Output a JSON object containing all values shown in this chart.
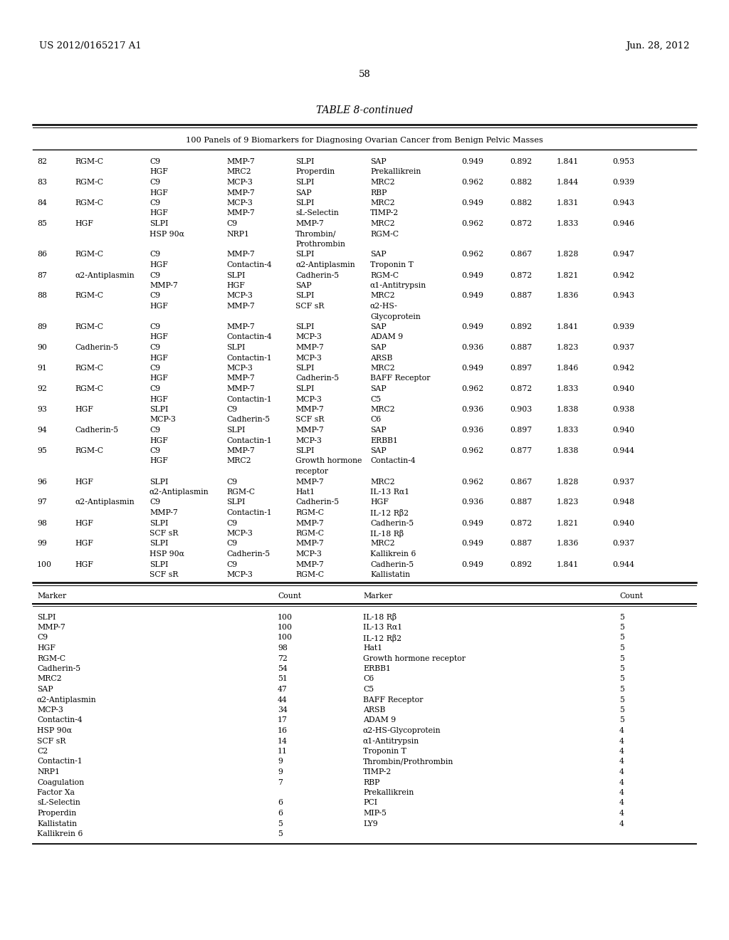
{
  "header_left": "US 2012/0165217 A1",
  "header_right": "Jun. 28, 2012",
  "page_number": "58",
  "table_title": "TABLE 8-continued",
  "table_subtitle": "100 Panels of 9 Biomarkers for Diagnosing Ovarian Cancer from Benign Pelvic Masses",
  "main_table_rows": [
    {
      "num": "82",
      "col1": "RGM-C",
      "col2": "C9",
      "col3": "MMP-7",
      "col4": "SLPI",
      "col5": "SAP",
      "v1": "0.949",
      "v2": "0.892",
      "v3": "1.841",
      "v4": "0.953"
    },
    {
      "num": "",
      "col1": "",
      "col2": "HGF",
      "col3": "MRC2",
      "col4": "Properdin",
      "col5": "Prekallikrein",
      "v1": "",
      "v2": "",
      "v3": "",
      "v4": ""
    },
    {
      "num": "83",
      "col1": "RGM-C",
      "col2": "C9",
      "col3": "MCP-3",
      "col4": "SLPI",
      "col5": "MRC2",
      "v1": "0.962",
      "v2": "0.882",
      "v3": "1.844",
      "v4": "0.939"
    },
    {
      "num": "",
      "col1": "",
      "col2": "HGF",
      "col3": "MMP-7",
      "col4": "SAP",
      "col5": "RBP",
      "v1": "",
      "v2": "",
      "v3": "",
      "v4": ""
    },
    {
      "num": "84",
      "col1": "RGM-C",
      "col2": "C9",
      "col3": "MCP-3",
      "col4": "SLPI",
      "col5": "MRC2",
      "v1": "0.949",
      "v2": "0.882",
      "v3": "1.831",
      "v4": "0.943"
    },
    {
      "num": "",
      "col1": "",
      "col2": "HGF",
      "col3": "MMP-7",
      "col4": "sL-Selectin",
      "col5": "TIMP-2",
      "v1": "",
      "v2": "",
      "v3": "",
      "v4": ""
    },
    {
      "num": "85",
      "col1": "HGF",
      "col2": "SLPI",
      "col3": "C9",
      "col4": "MMP-7",
      "col5": "MRC2",
      "v1": "0.962",
      "v2": "0.872",
      "v3": "1.833",
      "v4": "0.946"
    },
    {
      "num": "",
      "col1": "",
      "col2": "HSP 90α",
      "col3": "NRP1",
      "col4": "Thrombin/",
      "col5": "RGM-C",
      "v1": "",
      "v2": "",
      "v3": "",
      "v4": ""
    },
    {
      "num": "",
      "col1": "",
      "col2": "",
      "col3": "",
      "col4": "Prothrombin",
      "col5": "",
      "v1": "",
      "v2": "",
      "v3": "",
      "v4": ""
    },
    {
      "num": "86",
      "col1": "RGM-C",
      "col2": "C9",
      "col3": "MMP-7",
      "col4": "SLPI",
      "col5": "SAP",
      "v1": "0.962",
      "v2": "0.867",
      "v3": "1.828",
      "v4": "0.947"
    },
    {
      "num": "",
      "col1": "",
      "col2": "HGF",
      "col3": "Contactin-4",
      "col4": "α2-Antiplasmin",
      "col5": "Troponin T",
      "v1": "",
      "v2": "",
      "v3": "",
      "v4": ""
    },
    {
      "num": "87",
      "col1": "α2-Antiplasmin",
      "col2": "C9",
      "col3": "SLPI",
      "col4": "Cadherin-5",
      "col5": "RGM-C",
      "v1": "0.949",
      "v2": "0.872",
      "v3": "1.821",
      "v4": "0.942"
    },
    {
      "num": "",
      "col1": "",
      "col2": "MMP-7",
      "col3": "HGF",
      "col4": "SAP",
      "col5": "α1-Antitrypsin",
      "v1": "",
      "v2": "",
      "v3": "",
      "v4": ""
    },
    {
      "num": "88",
      "col1": "RGM-C",
      "col2": "C9",
      "col3": "MCP-3",
      "col4": "SLPI",
      "col5": "MRC2",
      "v1": "0.949",
      "v2": "0.887",
      "v3": "1.836",
      "v4": "0.943"
    },
    {
      "num": "",
      "col1": "",
      "col2": "HGF",
      "col3": "MMP-7",
      "col4": "SCF sR",
      "col5": "α2-HS-",
      "v1": "",
      "v2": "",
      "v3": "",
      "v4": ""
    },
    {
      "num": "",
      "col1": "",
      "col2": "",
      "col3": "",
      "col4": "",
      "col5": "Glycoprotein",
      "v1": "",
      "v2": "",
      "v3": "",
      "v4": ""
    },
    {
      "num": "89",
      "col1": "RGM-C",
      "col2": "C9",
      "col3": "MMP-7",
      "col4": "SLPI",
      "col5": "SAP",
      "v1": "0.949",
      "v2": "0.892",
      "v3": "1.841",
      "v4": "0.939"
    },
    {
      "num": "",
      "col1": "",
      "col2": "HGF",
      "col3": "Contactin-4",
      "col4": "MCP-3",
      "col5": "ADAM 9",
      "v1": "",
      "v2": "",
      "v3": "",
      "v4": ""
    },
    {
      "num": "90",
      "col1": "Cadherin-5",
      "col2": "C9",
      "col3": "SLPI",
      "col4": "MMP-7",
      "col5": "SAP",
      "v1": "0.936",
      "v2": "0.887",
      "v3": "1.823",
      "v4": "0.937"
    },
    {
      "num": "",
      "col1": "",
      "col2": "HGF",
      "col3": "Contactin-1",
      "col4": "MCP-3",
      "col5": "ARSB",
      "v1": "",
      "v2": "",
      "v3": "",
      "v4": ""
    },
    {
      "num": "91",
      "col1": "RGM-C",
      "col2": "C9",
      "col3": "MCP-3",
      "col4": "SLPI",
      "col5": "MRC2",
      "v1": "0.949",
      "v2": "0.897",
      "v3": "1.846",
      "v4": "0.942"
    },
    {
      "num": "",
      "col1": "",
      "col2": "HGF",
      "col3": "MMP-7",
      "col4": "Cadherin-5",
      "col5": "BAFF Receptor",
      "v1": "",
      "v2": "",
      "v3": "",
      "v4": ""
    },
    {
      "num": "92",
      "col1": "RGM-C",
      "col2": "C9",
      "col3": "MMP-7",
      "col4": "SLPI",
      "col5": "SAP",
      "v1": "0.962",
      "v2": "0.872",
      "v3": "1.833",
      "v4": "0.940"
    },
    {
      "num": "",
      "col1": "",
      "col2": "HGF",
      "col3": "Contactin-1",
      "col4": "MCP-3",
      "col5": "C5",
      "v1": "",
      "v2": "",
      "v3": "",
      "v4": ""
    },
    {
      "num": "93",
      "col1": "HGF",
      "col2": "SLPI",
      "col3": "C9",
      "col4": "MMP-7",
      "col5": "MRC2",
      "v1": "0.936",
      "v2": "0.903",
      "v3": "1.838",
      "v4": "0.938"
    },
    {
      "num": "",
      "col1": "",
      "col2": "MCP-3",
      "col3": "Cadherin-5",
      "col4": "SCF sR",
      "col5": "C6",
      "v1": "",
      "v2": "",
      "v3": "",
      "v4": ""
    },
    {
      "num": "94",
      "col1": "Cadherin-5",
      "col2": "C9",
      "col3": "SLPI",
      "col4": "MMP-7",
      "col5": "SAP",
      "v1": "0.936",
      "v2": "0.897",
      "v3": "1.833",
      "v4": "0.940"
    },
    {
      "num": "",
      "col1": "",
      "col2": "HGF",
      "col3": "Contactin-1",
      "col4": "MCP-3",
      "col5": "ERBB1",
      "v1": "",
      "v2": "",
      "v3": "",
      "v4": ""
    },
    {
      "num": "95",
      "col1": "RGM-C",
      "col2": "C9",
      "col3": "MMP-7",
      "col4": "SLPI",
      "col5": "SAP",
      "v1": "0.962",
      "v2": "0.877",
      "v3": "1.838",
      "v4": "0.944"
    },
    {
      "num": "",
      "col1": "",
      "col2": "HGF",
      "col3": "MRC2",
      "col4": "Growth hormone",
      "col5": "Contactin-4",
      "v1": "",
      "v2": "",
      "v3": "",
      "v4": ""
    },
    {
      "num": "",
      "col1": "",
      "col2": "",
      "col3": "",
      "col4": "receptor",
      "col5": "",
      "v1": "",
      "v2": "",
      "v3": "",
      "v4": ""
    },
    {
      "num": "96",
      "col1": "HGF",
      "col2": "SLPI",
      "col3": "C9",
      "col4": "MMP-7",
      "col5": "MRC2",
      "v1": "0.962",
      "v2": "0.867",
      "v3": "1.828",
      "v4": "0.937"
    },
    {
      "num": "",
      "col1": "",
      "col2": "α2-Antiplasmin",
      "col3": "RGM-C",
      "col4": "Hat1",
      "col5": "IL-13 Rα1",
      "v1": "",
      "v2": "",
      "v3": "",
      "v4": ""
    },
    {
      "num": "97",
      "col1": "α2-Antiplasmin",
      "col2": "C9",
      "col3": "SLPI",
      "col4": "Cadherin-5",
      "col5": "HGF",
      "v1": "0.936",
      "v2": "0.887",
      "v3": "1.823",
      "v4": "0.948"
    },
    {
      "num": "",
      "col1": "",
      "col2": "MMP-7",
      "col3": "Contactin-1",
      "col4": "RGM-C",
      "col5": "IL-12 Rβ2",
      "v1": "",
      "v2": "",
      "v3": "",
      "v4": ""
    },
    {
      "num": "98",
      "col1": "HGF",
      "col2": "SLPI",
      "col3": "C9",
      "col4": "MMP-7",
      "col5": "Cadherin-5",
      "v1": "0.949",
      "v2": "0.872",
      "v3": "1.821",
      "v4": "0.940"
    },
    {
      "num": "",
      "col1": "",
      "col2": "SCF sR",
      "col3": "MCP-3",
      "col4": "RGM-C",
      "col5": "IL-18 Rβ",
      "v1": "",
      "v2": "",
      "v3": "",
      "v4": ""
    },
    {
      "num": "99",
      "col1": "HGF",
      "col2": "SLPI",
      "col3": "C9",
      "col4": "MMP-7",
      "col5": "MRC2",
      "v1": "0.949",
      "v2": "0.887",
      "v3": "1.836",
      "v4": "0.937"
    },
    {
      "num": "",
      "col1": "",
      "col2": "HSP 90α",
      "col3": "Cadherin-5",
      "col4": "MCP-3",
      "col5": "Kallikrein 6",
      "v1": "",
      "v2": "",
      "v3": "",
      "v4": ""
    },
    {
      "num": "100",
      "col1": "HGF",
      "col2": "SLPI",
      "col3": "C9",
      "col4": "MMP-7",
      "col5": "Cadherin-5",
      "v1": "0.949",
      "v2": "0.892",
      "v3": "1.841",
      "v4": "0.944"
    },
    {
      "num": "",
      "col1": "",
      "col2": "SCF sR",
      "col3": "MCP-3",
      "col4": "RGM-C",
      "col5": "Kallistatin",
      "v1": "",
      "v2": "",
      "v3": "",
      "v4": ""
    }
  ],
  "summary_left": [
    {
      "marker": "SLPI",
      "count": "100"
    },
    {
      "marker": "MMP-7",
      "count": "100"
    },
    {
      "marker": "C9",
      "count": "100"
    },
    {
      "marker": "HGF",
      "count": "98"
    },
    {
      "marker": "RGM-C",
      "count": "72"
    },
    {
      "marker": "Cadherin-5",
      "count": "54"
    },
    {
      "marker": "MRC2",
      "count": "51"
    },
    {
      "marker": "SAP",
      "count": "47"
    },
    {
      "marker": "α2-Antiplasmin",
      "count": "44"
    },
    {
      "marker": "MCP-3",
      "count": "34"
    },
    {
      "marker": "Contactin-4",
      "count": "17"
    },
    {
      "marker": "HSP 90α",
      "count": "16"
    },
    {
      "marker": "SCF sR",
      "count": "14"
    },
    {
      "marker": "C2",
      "count": "11"
    },
    {
      "marker": "Contactin-1",
      "count": "9"
    },
    {
      "marker": "NRP1",
      "count": "9"
    },
    {
      "marker": "Coagulation",
      "count": "7"
    },
    {
      "marker": "Factor Xa",
      "count": ""
    },
    {
      "marker": "sL-Selectin",
      "count": "6"
    },
    {
      "marker": "Properdin",
      "count": "6"
    },
    {
      "marker": "Kallistatin",
      "count": "5"
    },
    {
      "marker": "Kallikrein 6",
      "count": "5"
    }
  ],
  "summary_right": [
    {
      "marker": "IL-18 Rβ",
      "count": "5"
    },
    {
      "marker": "IL-13 Rα1",
      "count": "5"
    },
    {
      "marker": "IL-12 Rβ2",
      "count": "5"
    },
    {
      "marker": "Hat1",
      "count": "5"
    },
    {
      "marker": "Growth hormone receptor",
      "count": "5"
    },
    {
      "marker": "ERBB1",
      "count": "5"
    },
    {
      "marker": "C6",
      "count": "5"
    },
    {
      "marker": "C5",
      "count": "5"
    },
    {
      "marker": "BAFF Receptor",
      "count": "5"
    },
    {
      "marker": "ARSB",
      "count": "5"
    },
    {
      "marker": "ADAM 9",
      "count": "5"
    },
    {
      "marker": "α2-HS-Glycoprotein",
      "count": "4"
    },
    {
      "marker": "α1-Antitrypsin",
      "count": "4"
    },
    {
      "marker": "Troponin T",
      "count": "4"
    },
    {
      "marker": "Thrombin/Prothrombin",
      "count": "4"
    },
    {
      "marker": "TIMP-2",
      "count": "4"
    },
    {
      "marker": "RBP",
      "count": "4"
    },
    {
      "marker": "Prekallikrein",
      "count": "4"
    },
    {
      "marker": "PCI",
      "count": "4"
    },
    {
      "marker": "MIP-5",
      "count": "4"
    },
    {
      "marker": "LY9",
      "count": "4"
    }
  ]
}
